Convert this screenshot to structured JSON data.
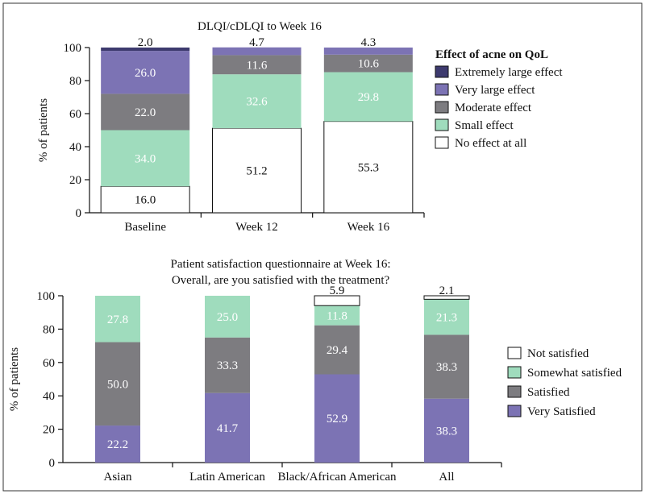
{
  "colors": {
    "extremely_large": "#3d3a6e",
    "very_large": "#7c73b4",
    "moderate": "#7d7c80",
    "small": "#9fdcbd",
    "none": "#ffffff",
    "very_satisfied": "#7c73b4",
    "satisfied": "#7d7c80",
    "somewhat_satisfied": "#9fdcbd",
    "not_satisfied": "#ffffff"
  },
  "chart_data": [
    {
      "type": "bar",
      "stacked": true,
      "title": "DLQI/cDLQI to Week 16",
      "ylabel": "% of patients",
      "ylim": [
        0,
        100
      ],
      "yticks": [
        "0",
        "20",
        "40",
        "60",
        "80",
        "100"
      ],
      "categories": [
        "Baseline",
        "Week 12",
        "Week 16"
      ],
      "legend_title": "Effect of acne on QoL",
      "legend_position": "right",
      "series": [
        {
          "name": "No effect at all",
          "color_key": "none",
          "values": [
            16.0,
            51.2,
            55.3
          ],
          "labels": [
            "16.0",
            "51.2",
            "55.3"
          ]
        },
        {
          "name": "Small effect",
          "color_key": "small",
          "values": [
            34.0,
            32.6,
            29.8
          ],
          "labels": [
            "34.0",
            "32.6",
            "29.8"
          ]
        },
        {
          "name": "Moderate effect",
          "color_key": "moderate",
          "values": [
            22.0,
            11.6,
            10.6
          ],
          "labels": [
            "22.0",
            "11.6",
            "10.6"
          ]
        },
        {
          "name": "Very large effect",
          "color_key": "very_large",
          "values": [
            26.0,
            4.7,
            4.3
          ],
          "labels": [
            "26.0",
            "4.7",
            "4.3"
          ]
        },
        {
          "name": "Extremely large effect",
          "color_key": "extremely_large",
          "values": [
            2.0,
            0,
            0
          ],
          "labels": [
            "2.0",
            "",
            ""
          ]
        }
      ]
    },
    {
      "type": "bar",
      "stacked": true,
      "title": [
        "Patient satisfaction questionnaire at Week 16:",
        "Overall, are you satisfied with the treatment?"
      ],
      "ylabel": "% of patients",
      "ylim": [
        0,
        100
      ],
      "yticks": [
        "0",
        "20",
        "40",
        "60",
        "80",
        "100"
      ],
      "categories": [
        "Asian",
        "Latin American",
        "Black/African American",
        "All"
      ],
      "legend_title": "",
      "legend_position": "right",
      "series": [
        {
          "name": "Very Satisfied",
          "color_key": "very_satisfied",
          "values": [
            22.2,
            41.7,
            52.9,
            38.3
          ],
          "labels": [
            "22.2",
            "41.7",
            "52.9",
            "38.3"
          ]
        },
        {
          "name": "Satisfied",
          "color_key": "satisfied",
          "values": [
            50.0,
            33.3,
            29.4,
            38.3
          ],
          "labels": [
            "50.0",
            "33.3",
            "29.4",
            "38.3"
          ]
        },
        {
          "name": "Somewhat satisfied",
          "color_key": "somewhat_satisfied",
          "values": [
            27.8,
            25.0,
            11.8,
            21.3
          ],
          "labels": [
            "27.8",
            "25.0",
            "11.8",
            "21.3"
          ]
        },
        {
          "name": "Not satisfied",
          "color_key": "not_satisfied",
          "values": [
            0,
            0,
            5.9,
            2.1
          ],
          "labels": [
            "",
            "",
            "5.9",
            "2.1"
          ]
        }
      ],
      "legend_order": [
        "Not satisfied",
        "Somewhat satisfied",
        "Satisfied",
        "Very Satisfied"
      ]
    }
  ]
}
